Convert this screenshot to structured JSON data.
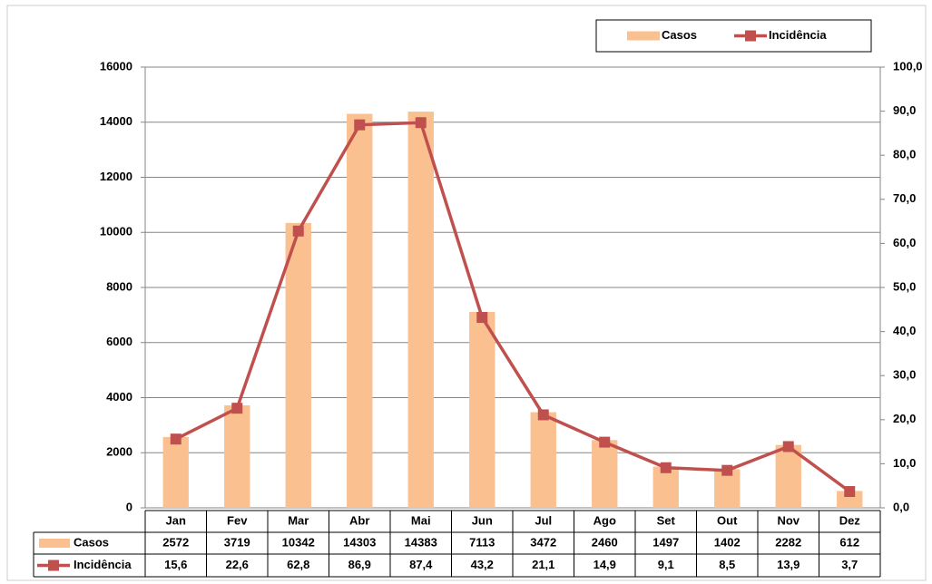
{
  "chart_data": {
    "type": "bar-line",
    "categories": [
      "Jan",
      "Fev",
      "Mar",
      "Abr",
      "Mai",
      "Jun",
      "Jul",
      "Ago",
      "Set",
      "Out",
      "Nov",
      "Dez"
    ],
    "series": [
      {
        "name": "Casos",
        "type": "bar",
        "color": "#FAC090",
        "values": [
          2572,
          3719,
          10342,
          14303,
          14383,
          7113,
          3472,
          2460,
          1497,
          1402,
          2282,
          612
        ]
      },
      {
        "name": "Incidência",
        "type": "line",
        "axis": "y2",
        "color": "#C0504D",
        "values": [
          15.6,
          22.6,
          62.8,
          86.9,
          87.4,
          43.2,
          21.1,
          14.9,
          9.1,
          8.5,
          13.9,
          3.7
        ],
        "value_labels": [
          "15,6",
          "22,6",
          "62,8",
          "86,9",
          "87,4",
          "43,2",
          "21,1",
          "14,9",
          "9,1",
          "8,5",
          "13,9",
          "3,7"
        ]
      }
    ],
    "ylim": [
      0,
      16000
    ],
    "yticks": [
      0,
      2000,
      4000,
      6000,
      8000,
      10000,
      12000,
      14000,
      16000
    ],
    "y2lim": [
      0,
      100
    ],
    "y2ticks": [
      {
        "value": 0,
        "label": "0,0"
      },
      {
        "value": 10,
        "label": "10,0"
      },
      {
        "value": 20,
        "label": "20,0"
      },
      {
        "value": 30,
        "label": "30,0"
      },
      {
        "value": 40,
        "label": "40,0"
      },
      {
        "value": 50,
        "label": "50,0"
      },
      {
        "value": 60,
        "label": "60,0"
      },
      {
        "value": 70,
        "label": "70,0"
      },
      {
        "value": 80,
        "label": "80,0"
      },
      {
        "value": 90,
        "label": "90,0"
      },
      {
        "value": 100,
        "label": "100,0"
      }
    ],
    "grid": true,
    "legend": "top-right",
    "data_table": true
  }
}
